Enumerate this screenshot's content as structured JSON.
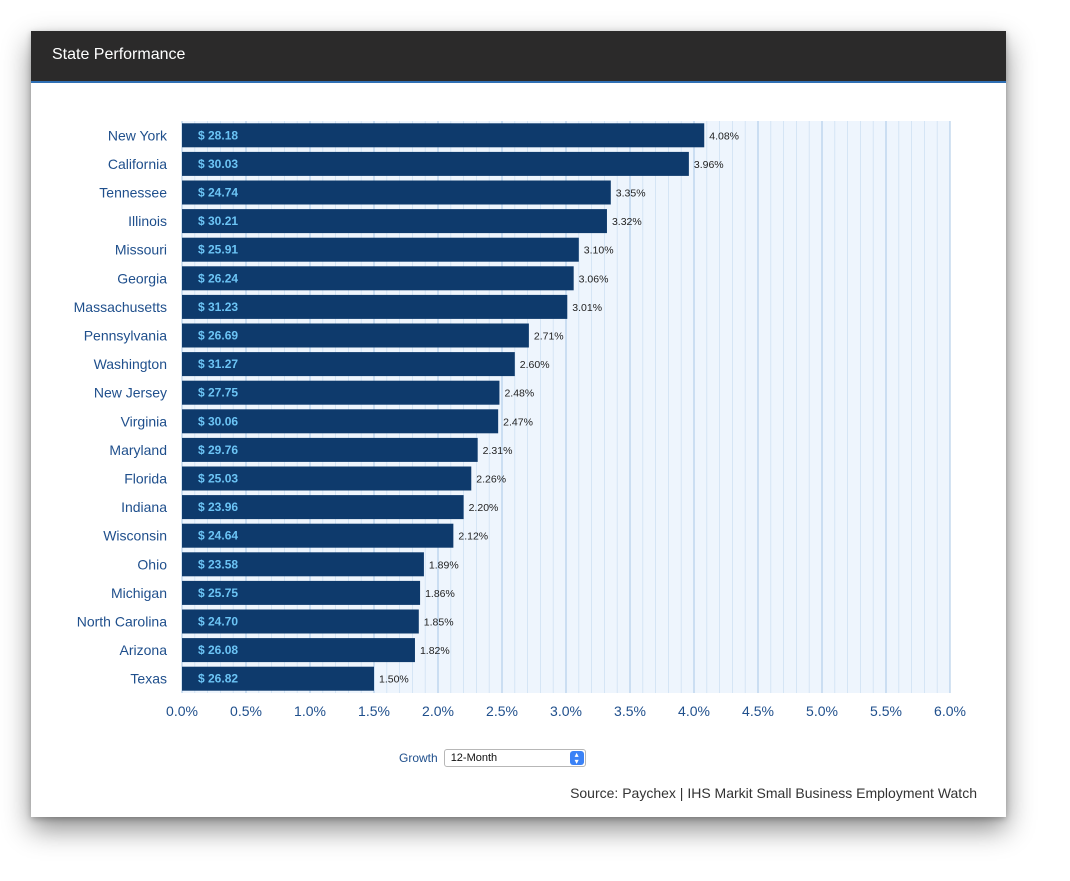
{
  "header": {
    "title": "State Performance"
  },
  "chart_data": {
    "type": "bar",
    "orientation": "horizontal",
    "categories": [
      "New York",
      "California",
      "Tennessee",
      "Illinois",
      "Missouri",
      "Georgia",
      "Massachusetts",
      "Pennsylvania",
      "Washington",
      "New Jersey",
      "Virginia",
      "Maryland",
      "Florida",
      "Indiana",
      "Wisconsin",
      "Ohio",
      "Michigan",
      "North Carolina",
      "Arizona",
      "Texas"
    ],
    "values": [
      4.08,
      3.96,
      3.35,
      3.32,
      3.1,
      3.06,
      3.01,
      2.71,
      2.6,
      2.48,
      2.47,
      2.31,
      2.26,
      2.2,
      2.12,
      1.89,
      1.86,
      1.85,
      1.82,
      1.5
    ],
    "value_labels": [
      "4.08%",
      "3.96%",
      "3.35%",
      "3.32%",
      "3.10%",
      "3.06%",
      "3.01%",
      "2.71%",
      "2.60%",
      "2.48%",
      "2.47%",
      "2.31%",
      "2.26%",
      "2.20%",
      "2.12%",
      "1.89%",
      "1.86%",
      "1.85%",
      "1.82%",
      "1.50%"
    ],
    "bar_labels": [
      "$ 28.18",
      "$ 30.03",
      "$ 24.74",
      "$ 30.21",
      "$ 25.91",
      "$ 26.24",
      "$ 31.23",
      "$ 26.69",
      "$ 31.27",
      "$ 27.75",
      "$ 30.06",
      "$ 29.76",
      "$ 25.03",
      "$ 23.96",
      "$ 24.64",
      "$ 23.58",
      "$ 25.75",
      "$ 24.70",
      "$ 26.08",
      "$ 26.82"
    ],
    "xlim": [
      0,
      6.0
    ],
    "xticks": [
      "0.0%",
      "0.5%",
      "1.0%",
      "1.5%",
      "2.0%",
      "2.5%",
      "3.0%",
      "3.5%",
      "4.0%",
      "4.5%",
      "5.0%",
      "5.5%",
      "6.0%"
    ],
    "grid": true,
    "colors": {
      "bar": "#0e3a6c",
      "bar_label": "#6cc4f5",
      "axis_text": "#1f4f8c",
      "grid": "#b9d4ec",
      "plot_bg": "#eef5fd"
    }
  },
  "controls": {
    "growth_label": "Growth",
    "growth_value": "12-Month"
  },
  "source": "Source: Paychex | IHS Markit Small Business Employment Watch"
}
